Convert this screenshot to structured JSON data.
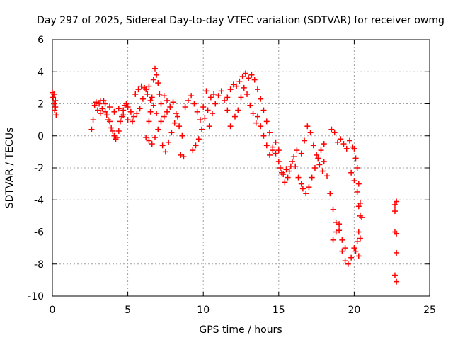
{
  "chart_data": {
    "type": "scatter",
    "title": "Day 297 of 2025, Sidereal Day-to-day VTEC variation (SDTVAR) for receiver owmg",
    "xlabel": "GPS time / hours",
    "ylabel": "SDTVAR / TECUs",
    "xlim": [
      0,
      25
    ],
    "ylim": [
      -10,
      6
    ],
    "xticks": [
      "0",
      "5",
      "10",
      "15",
      "20",
      "25"
    ],
    "yticks": [
      "6",
      "4",
      "2",
      "0",
      "-2",
      "-4",
      "-6",
      "-8",
      "-10"
    ],
    "grid": true,
    "marker": "+",
    "colors": {
      "series": "#ff0000",
      "grid": "#a0a0a0",
      "axis": "#000000"
    },
    "series": [
      {
        "name": "SDTVAR",
        "points": [
          [
            0.0,
            2.7
          ],
          [
            0.05,
            2.4
          ],
          [
            0.1,
            2.0
          ],
          [
            0.15,
            1.6
          ],
          [
            0.2,
            2.2
          ],
          [
            0.25,
            1.3
          ],
          [
            0.1,
            2.6
          ],
          [
            0.2,
            1.8
          ],
          [
            2.6,
            0.4
          ],
          [
            2.7,
            1.0
          ],
          [
            2.8,
            1.9
          ],
          [
            2.9,
            2.1
          ],
          [
            3.0,
            1.6
          ],
          [
            3.1,
            2.0
          ],
          [
            3.2,
            1.4
          ],
          [
            3.3,
            1.7
          ],
          [
            3.4,
            2.2
          ],
          [
            3.5,
            1.5
          ],
          [
            3.6,
            1.3
          ],
          [
            3.7,
            1.0
          ],
          [
            3.8,
            0.9
          ],
          [
            3.9,
            0.5
          ],
          [
            4.0,
            0.3
          ],
          [
            4.1,
            0.0
          ],
          [
            4.2,
            -0.2
          ],
          [
            4.3,
            -0.1
          ],
          [
            4.4,
            0.3
          ],
          [
            4.5,
            0.9
          ],
          [
            4.6,
            1.2
          ],
          [
            4.7,
            1.6
          ],
          [
            4.8,
            1.9
          ],
          [
            4.9,
            2.0
          ],
          [
            3.2,
            2.2
          ],
          [
            3.5,
            2.0
          ],
          [
            3.8,
            1.8
          ],
          [
            4.1,
            1.5
          ],
          [
            4.4,
            1.7
          ],
          [
            4.7,
            1.3
          ],
          [
            5.0,
            1.0
          ],
          [
            5.3,
            0.9
          ],
          [
            5.0,
            1.8
          ],
          [
            5.2,
            1.5
          ],
          [
            5.4,
            1.2
          ],
          [
            5.6,
            1.4
          ],
          [
            5.8,
            1.7
          ],
          [
            6.0,
            2.3
          ],
          [
            6.2,
            2.9
          ],
          [
            6.4,
            3.1
          ],
          [
            5.5,
            2.6
          ],
          [
            5.7,
            2.9
          ],
          [
            5.9,
            3.1
          ],
          [
            6.1,
            3.0
          ],
          [
            6.3,
            2.6
          ],
          [
            6.5,
            2.2
          ],
          [
            6.7,
            1.9
          ],
          [
            6.9,
            1.4
          ],
          [
            6.4,
            0.9
          ],
          [
            6.5,
            1.5
          ],
          [
            6.6,
            2.4
          ],
          [
            6.7,
            3.5
          ],
          [
            6.8,
            4.2
          ],
          [
            6.9,
            3.8
          ],
          [
            7.0,
            3.3
          ],
          [
            7.1,
            2.6
          ],
          [
            6.2,
            -0.1
          ],
          [
            6.4,
            -0.3
          ],
          [
            6.6,
            -0.5
          ],
          [
            6.8,
            -0.1
          ],
          [
            7.0,
            0.4
          ],
          [
            7.2,
            0.9
          ],
          [
            7.4,
            1.2
          ],
          [
            7.6,
            1.5
          ],
          [
            7.2,
            2.0
          ],
          [
            7.4,
            2.5
          ],
          [
            7.6,
            2.2
          ],
          [
            7.8,
            1.8
          ],
          [
            8.0,
            2.1
          ],
          [
            8.2,
            1.4
          ],
          [
            8.4,
            0.6
          ],
          [
            8.6,
            0.0
          ],
          [
            7.3,
            -0.6
          ],
          [
            7.5,
            -1.0
          ],
          [
            7.7,
            -0.4
          ],
          [
            7.9,
            0.2
          ],
          [
            8.1,
            0.8
          ],
          [
            8.3,
            1.2
          ],
          [
            8.5,
            -1.2
          ],
          [
            8.7,
            -1.3
          ],
          [
            8.8,
            1.8
          ],
          [
            9.0,
            2.2
          ],
          [
            9.2,
            2.5
          ],
          [
            9.4,
            2.0
          ],
          [
            9.6,
            1.5
          ],
          [
            9.8,
            1.0
          ],
          [
            10.0,
            1.8
          ],
          [
            10.2,
            2.8
          ],
          [
            9.3,
            -0.9
          ],
          [
            9.5,
            -0.6
          ],
          [
            9.7,
            -0.2
          ],
          [
            9.9,
            0.4
          ],
          [
            10.1,
            1.1
          ],
          [
            10.3,
            1.6
          ],
          [
            10.5,
            2.4
          ],
          [
            10.7,
            2.6
          ],
          [
            10.4,
            0.6
          ],
          [
            10.6,
            1.4
          ],
          [
            10.8,
            2.0
          ],
          [
            11.0,
            2.5
          ],
          [
            11.2,
            2.8
          ],
          [
            11.4,
            2.2
          ],
          [
            11.6,
            1.6
          ],
          [
            11.8,
            0.6
          ],
          [
            11.6,
            2.4
          ],
          [
            11.8,
            2.9
          ],
          [
            12.0,
            3.2
          ],
          [
            12.2,
            3.1
          ],
          [
            12.4,
            3.4
          ],
          [
            12.6,
            3.7
          ],
          [
            12.8,
            3.9
          ],
          [
            13.0,
            3.6
          ],
          [
            12.1,
            1.2
          ],
          [
            12.3,
            1.6
          ],
          [
            12.5,
            2.4
          ],
          [
            12.7,
            3.0
          ],
          [
            12.9,
            2.6
          ],
          [
            13.1,
            1.9
          ],
          [
            13.3,
            1.4
          ],
          [
            13.5,
            0.8
          ],
          [
            13.2,
            3.8
          ],
          [
            13.4,
            3.5
          ],
          [
            13.6,
            2.9
          ],
          [
            13.8,
            2.3
          ],
          [
            14.0,
            1.6
          ],
          [
            14.2,
            0.9
          ],
          [
            14.4,
            0.2
          ],
          [
            14.6,
            -0.7
          ],
          [
            13.6,
            1.2
          ],
          [
            13.8,
            0.6
          ],
          [
            14.0,
            0.0
          ],
          [
            14.2,
            -0.6
          ],
          [
            14.4,
            -1.2
          ],
          [
            14.6,
            -0.9
          ],
          [
            14.8,
            -0.4
          ],
          [
            15.0,
            -0.9
          ],
          [
            14.8,
            -1.1
          ],
          [
            15.0,
            -1.6
          ],
          [
            15.2,
            -2.3
          ],
          [
            15.4,
            -2.9
          ],
          [
            15.6,
            -2.6
          ],
          [
            15.8,
            -1.9
          ],
          [
            16.0,
            -1.3
          ],
          [
            16.2,
            -0.9
          ],
          [
            15.1,
            -2.0
          ],
          [
            15.3,
            -2.4
          ],
          [
            15.5,
            -2.1
          ],
          [
            15.7,
            -2.2
          ],
          [
            15.9,
            -1.6
          ],
          [
            16.1,
            -1.9
          ],
          [
            16.3,
            -2.6
          ],
          [
            16.5,
            -3.0
          ],
          [
            16.5,
            -1.1
          ],
          [
            16.7,
            -0.3
          ],
          [
            16.9,
            0.6
          ],
          [
            17.1,
            0.2
          ],
          [
            17.3,
            -0.6
          ],
          [
            17.5,
            -1.2
          ],
          [
            17.7,
            -1.8
          ],
          [
            17.9,
            -2.2
          ],
          [
            16.6,
            -3.3
          ],
          [
            16.8,
            -3.6
          ],
          [
            17.0,
            -3.2
          ],
          [
            17.2,
            -2.6
          ],
          [
            17.4,
            -2.0
          ],
          [
            17.6,
            -1.4
          ],
          [
            17.8,
            -0.9
          ],
          [
            18.0,
            -0.5
          ],
          [
            18.0,
            -1.6
          ],
          [
            18.2,
            -2.5
          ],
          [
            18.4,
            -3.6
          ],
          [
            18.6,
            -4.6
          ],
          [
            18.8,
            -5.4
          ],
          [
            19.0,
            -5.9
          ],
          [
            19.2,
            -6.5
          ],
          [
            19.4,
            -7.0
          ],
          [
            18.5,
            0.4
          ],
          [
            18.7,
            0.2
          ],
          [
            18.9,
            -0.4
          ],
          [
            19.1,
            -0.2
          ],
          [
            19.3,
            -0.5
          ],
          [
            19.5,
            -0.8
          ],
          [
            19.7,
            -0.3
          ],
          [
            19.9,
            -0.7
          ],
          [
            18.6,
            -6.5
          ],
          [
            18.8,
            -6.0
          ],
          [
            19.0,
            -5.5
          ],
          [
            19.2,
            -7.2
          ],
          [
            19.4,
            -7.8
          ],
          [
            19.6,
            -8.0
          ],
          [
            19.8,
            -7.6
          ],
          [
            20.0,
            -7.0
          ],
          [
            19.8,
            -2.3
          ],
          [
            20.0,
            -2.8
          ],
          [
            20.2,
            -3.5
          ],
          [
            20.3,
            -4.4
          ],
          [
            20.4,
            -5.0
          ],
          [
            20.3,
            -6.0
          ],
          [
            20.2,
            -6.6
          ],
          [
            20.1,
            -7.2
          ],
          [
            20.0,
            -0.8
          ],
          [
            20.1,
            -1.4
          ],
          [
            20.2,
            -2.0
          ],
          [
            20.3,
            -3.0
          ],
          [
            20.4,
            -4.2
          ],
          [
            20.5,
            -5.1
          ],
          [
            20.4,
            -6.4
          ],
          [
            20.3,
            -7.5
          ],
          [
            22.7,
            -4.3
          ],
          [
            22.7,
            -4.7
          ],
          [
            22.8,
            -4.1
          ],
          [
            22.8,
            -6.1
          ],
          [
            22.7,
            -6.0
          ],
          [
            22.8,
            -7.3
          ],
          [
            22.7,
            -8.7
          ],
          [
            22.8,
            -9.1
          ]
        ]
      }
    ]
  }
}
